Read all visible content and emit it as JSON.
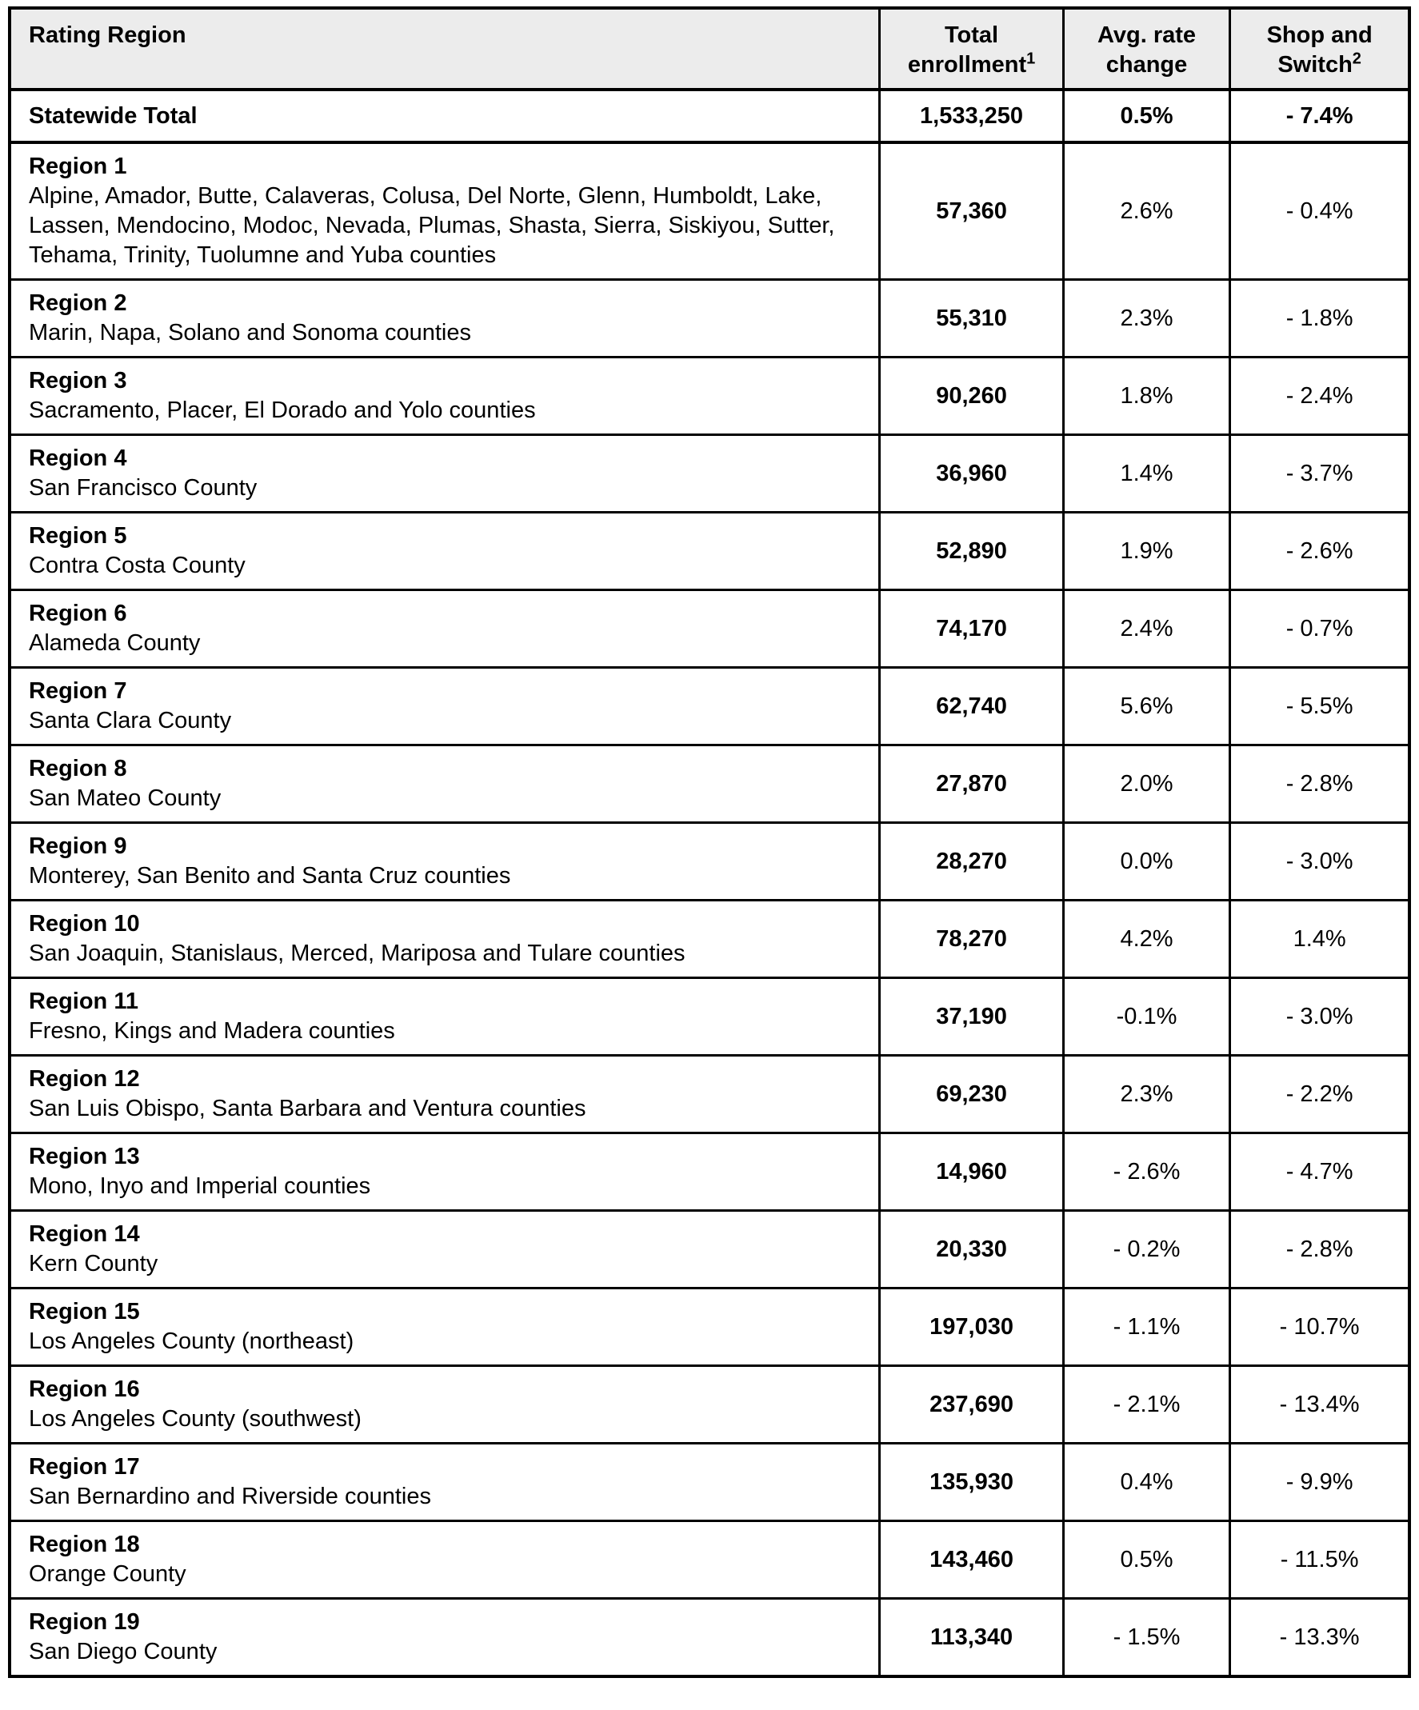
{
  "table": {
    "headers": {
      "region": "Rating Region",
      "enrollment": "Total enrollment",
      "enrollment_sup": "1",
      "rate": "Avg. rate change",
      "shop": "Shop and Switch",
      "shop_sup": "2"
    },
    "statewide": {
      "name": "Statewide Total",
      "enrollment": "1,533,250",
      "rate": "0.5%",
      "shop": "- 7.4%"
    },
    "regions": [
      {
        "name": "Region 1",
        "counties": "Alpine, Amador, Butte, Calaveras, Colusa, Del Norte, Glenn, Humboldt, Lake, Lassen, Mendocino, Modoc, Nevada, Plumas, Shasta, Sierra, Siskiyou, Sutter, Tehama, Trinity, Tuolumne and Yuba counties",
        "enrollment": "57,360",
        "rate": "2.6%",
        "shop": "- 0.4%"
      },
      {
        "name": "Region 2",
        "counties": "Marin, Napa, Solano and Sonoma counties",
        "enrollment": "55,310",
        "rate": "2.3%",
        "shop": "- 1.8%"
      },
      {
        "name": "Region 3",
        "counties": "Sacramento, Placer, El Dorado and Yolo counties",
        "enrollment": "90,260",
        "rate": "1.8%",
        "shop": "- 2.4%"
      },
      {
        "name": "Region 4",
        "counties": "San Francisco County",
        "enrollment": "36,960",
        "rate": "1.4%",
        "shop": "- 3.7%"
      },
      {
        "name": "Region 5",
        "counties": "Contra Costa County",
        "enrollment": "52,890",
        "rate": "1.9%",
        "shop": "- 2.6%"
      },
      {
        "name": "Region 6",
        "counties": "Alameda County",
        "enrollment": "74,170",
        "rate": "2.4%",
        "shop": "- 0.7%"
      },
      {
        "name": "Region 7",
        "counties": "Santa Clara County",
        "enrollment": "62,740",
        "rate": "5.6%",
        "shop": "- 5.5%"
      },
      {
        "name": "Region 8",
        "counties": "San Mateo County",
        "enrollment": "27,870",
        "rate": "2.0%",
        "shop": "- 2.8%"
      },
      {
        "name": "Region 9",
        "counties": "Monterey, San Benito and Santa Cruz counties",
        "enrollment": "28,270",
        "rate": "0.0%",
        "shop": "- 3.0%"
      },
      {
        "name": "Region 10",
        "counties": "San Joaquin, Stanislaus, Merced, Mariposa and Tulare counties",
        "enrollment": "78,270",
        "rate": "4.2%",
        "shop": "1.4%"
      },
      {
        "name": "Region 11",
        "counties": "Fresno, Kings and Madera counties",
        "enrollment": "37,190",
        "rate": "-0.1%",
        "shop": "- 3.0%"
      },
      {
        "name": "Region 12",
        "counties": "San Luis Obispo, Santa Barbara and Ventura counties",
        "enrollment": "69,230",
        "rate": "2.3%",
        "shop": "- 2.2%"
      },
      {
        "name": "Region 13",
        "counties": "Mono, Inyo and Imperial counties",
        "enrollment": "14,960",
        "rate": "- 2.6%",
        "shop": "- 4.7%"
      },
      {
        "name": "Region 14",
        "counties": "Kern County",
        "enrollment": "20,330",
        "rate": "- 0.2%",
        "shop": "- 2.8%"
      },
      {
        "name": "Region 15",
        "counties": "Los Angeles County (northeast)",
        "enrollment": "197,030",
        "rate": "- 1.1%",
        "shop": "- 10.7%"
      },
      {
        "name": "Region 16",
        "counties": "Los Angeles County (southwest)",
        "enrollment": "237,690",
        "rate": "- 2.1%",
        "shop": "- 13.4%"
      },
      {
        "name": "Region 17",
        "counties": "San Bernardino and Riverside counties",
        "enrollment": "135,930",
        "rate": "0.4%",
        "shop": "- 9.9%"
      },
      {
        "name": "Region 18",
        "counties": "Orange County",
        "enrollment": "143,460",
        "rate": "0.5%",
        "shop": "- 11.5%"
      },
      {
        "name": "Region 19",
        "counties": "San Diego County",
        "enrollment": "113,340",
        "rate": "- 1.5%",
        "shop": "- 13.3%"
      }
    ],
    "colors": {
      "header_bg": "#ececec",
      "border": "#000000",
      "text": "#000000"
    }
  }
}
